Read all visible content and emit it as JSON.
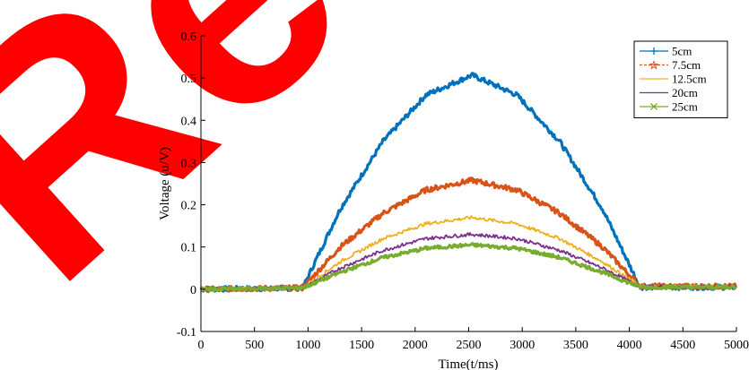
{
  "chart_data": {
    "type": "line",
    "xlabel": "Time(t/ms)",
    "ylabel": "Voltage (u/V)",
    "xlim": [
      0,
      5000
    ],
    "ylim": [
      -0.1,
      0.6
    ],
    "xticks": [
      0,
      500,
      1000,
      1500,
      2000,
      2500,
      3000,
      3500,
      4000,
      4500,
      5000
    ],
    "yticks": [
      -0.1,
      0,
      0.1,
      0.2,
      0.3,
      0.4,
      0.5,
      0.6
    ],
    "ytick_labels": [
      "-0.1",
      "0",
      "0.1",
      "0.2",
      "0.3",
      "0.4",
      "0.5",
      "0.6"
    ],
    "legend_position": "top-right",
    "grid": false,
    "series": [
      {
        "name": "5cm",
        "color": "#0072BD",
        "marker": "plus",
        "line": "solid",
        "x": [
          0,
          950,
          1300,
          1700,
          2100,
          2530,
          2950,
          3350,
          3750,
          4100,
          5000
        ],
        "y": [
          0.0,
          0.003,
          0.19,
          0.35,
          0.46,
          0.507,
          0.46,
          0.35,
          0.19,
          0.005,
          0.005
        ]
      },
      {
        "name": "7.5cm",
        "color": "#D95319",
        "marker": "star",
        "line": "dashed",
        "x": [
          0,
          950,
          1300,
          1700,
          2100,
          2530,
          2950,
          3350,
          3750,
          4100,
          5000
        ],
        "y": [
          0.0,
          0.003,
          0.1,
          0.18,
          0.235,
          0.258,
          0.235,
          0.18,
          0.1,
          0.007,
          0.007
        ]
      },
      {
        "name": "12.5cm",
        "color": "#EDB120",
        "marker": "none",
        "line": "solid",
        "x": [
          0,
          950,
          1300,
          1700,
          2100,
          2530,
          2950,
          3350,
          3750,
          4100,
          5000
        ],
        "y": [
          0.0,
          0.003,
          0.065,
          0.12,
          0.155,
          0.17,
          0.155,
          0.12,
          0.065,
          0.007,
          0.007
        ]
      },
      {
        "name": "20cm",
        "color": "#7E2F8E",
        "marker": "none",
        "line": "solid",
        "x": [
          0,
          950,
          1300,
          1700,
          2100,
          2530,
          2950,
          3350,
          3750,
          4100,
          5000
        ],
        "y": [
          0.0,
          0.003,
          0.05,
          0.092,
          0.12,
          0.13,
          0.12,
          0.092,
          0.05,
          0.006,
          0.006
        ]
      },
      {
        "name": "25cm",
        "color": "#77AC30",
        "marker": "x",
        "line": "solid",
        "x": [
          0,
          950,
          1300,
          1700,
          2100,
          2530,
          2950,
          3350,
          3750,
          4100,
          5000
        ],
        "y": [
          0.0,
          0.003,
          0.04,
          0.075,
          0.097,
          0.105,
          0.097,
          0.075,
          0.04,
          0.005,
          0.005
        ]
      }
    ]
  },
  "watermark": {
    "text": "Re",
    "color": "#FF0000"
  }
}
